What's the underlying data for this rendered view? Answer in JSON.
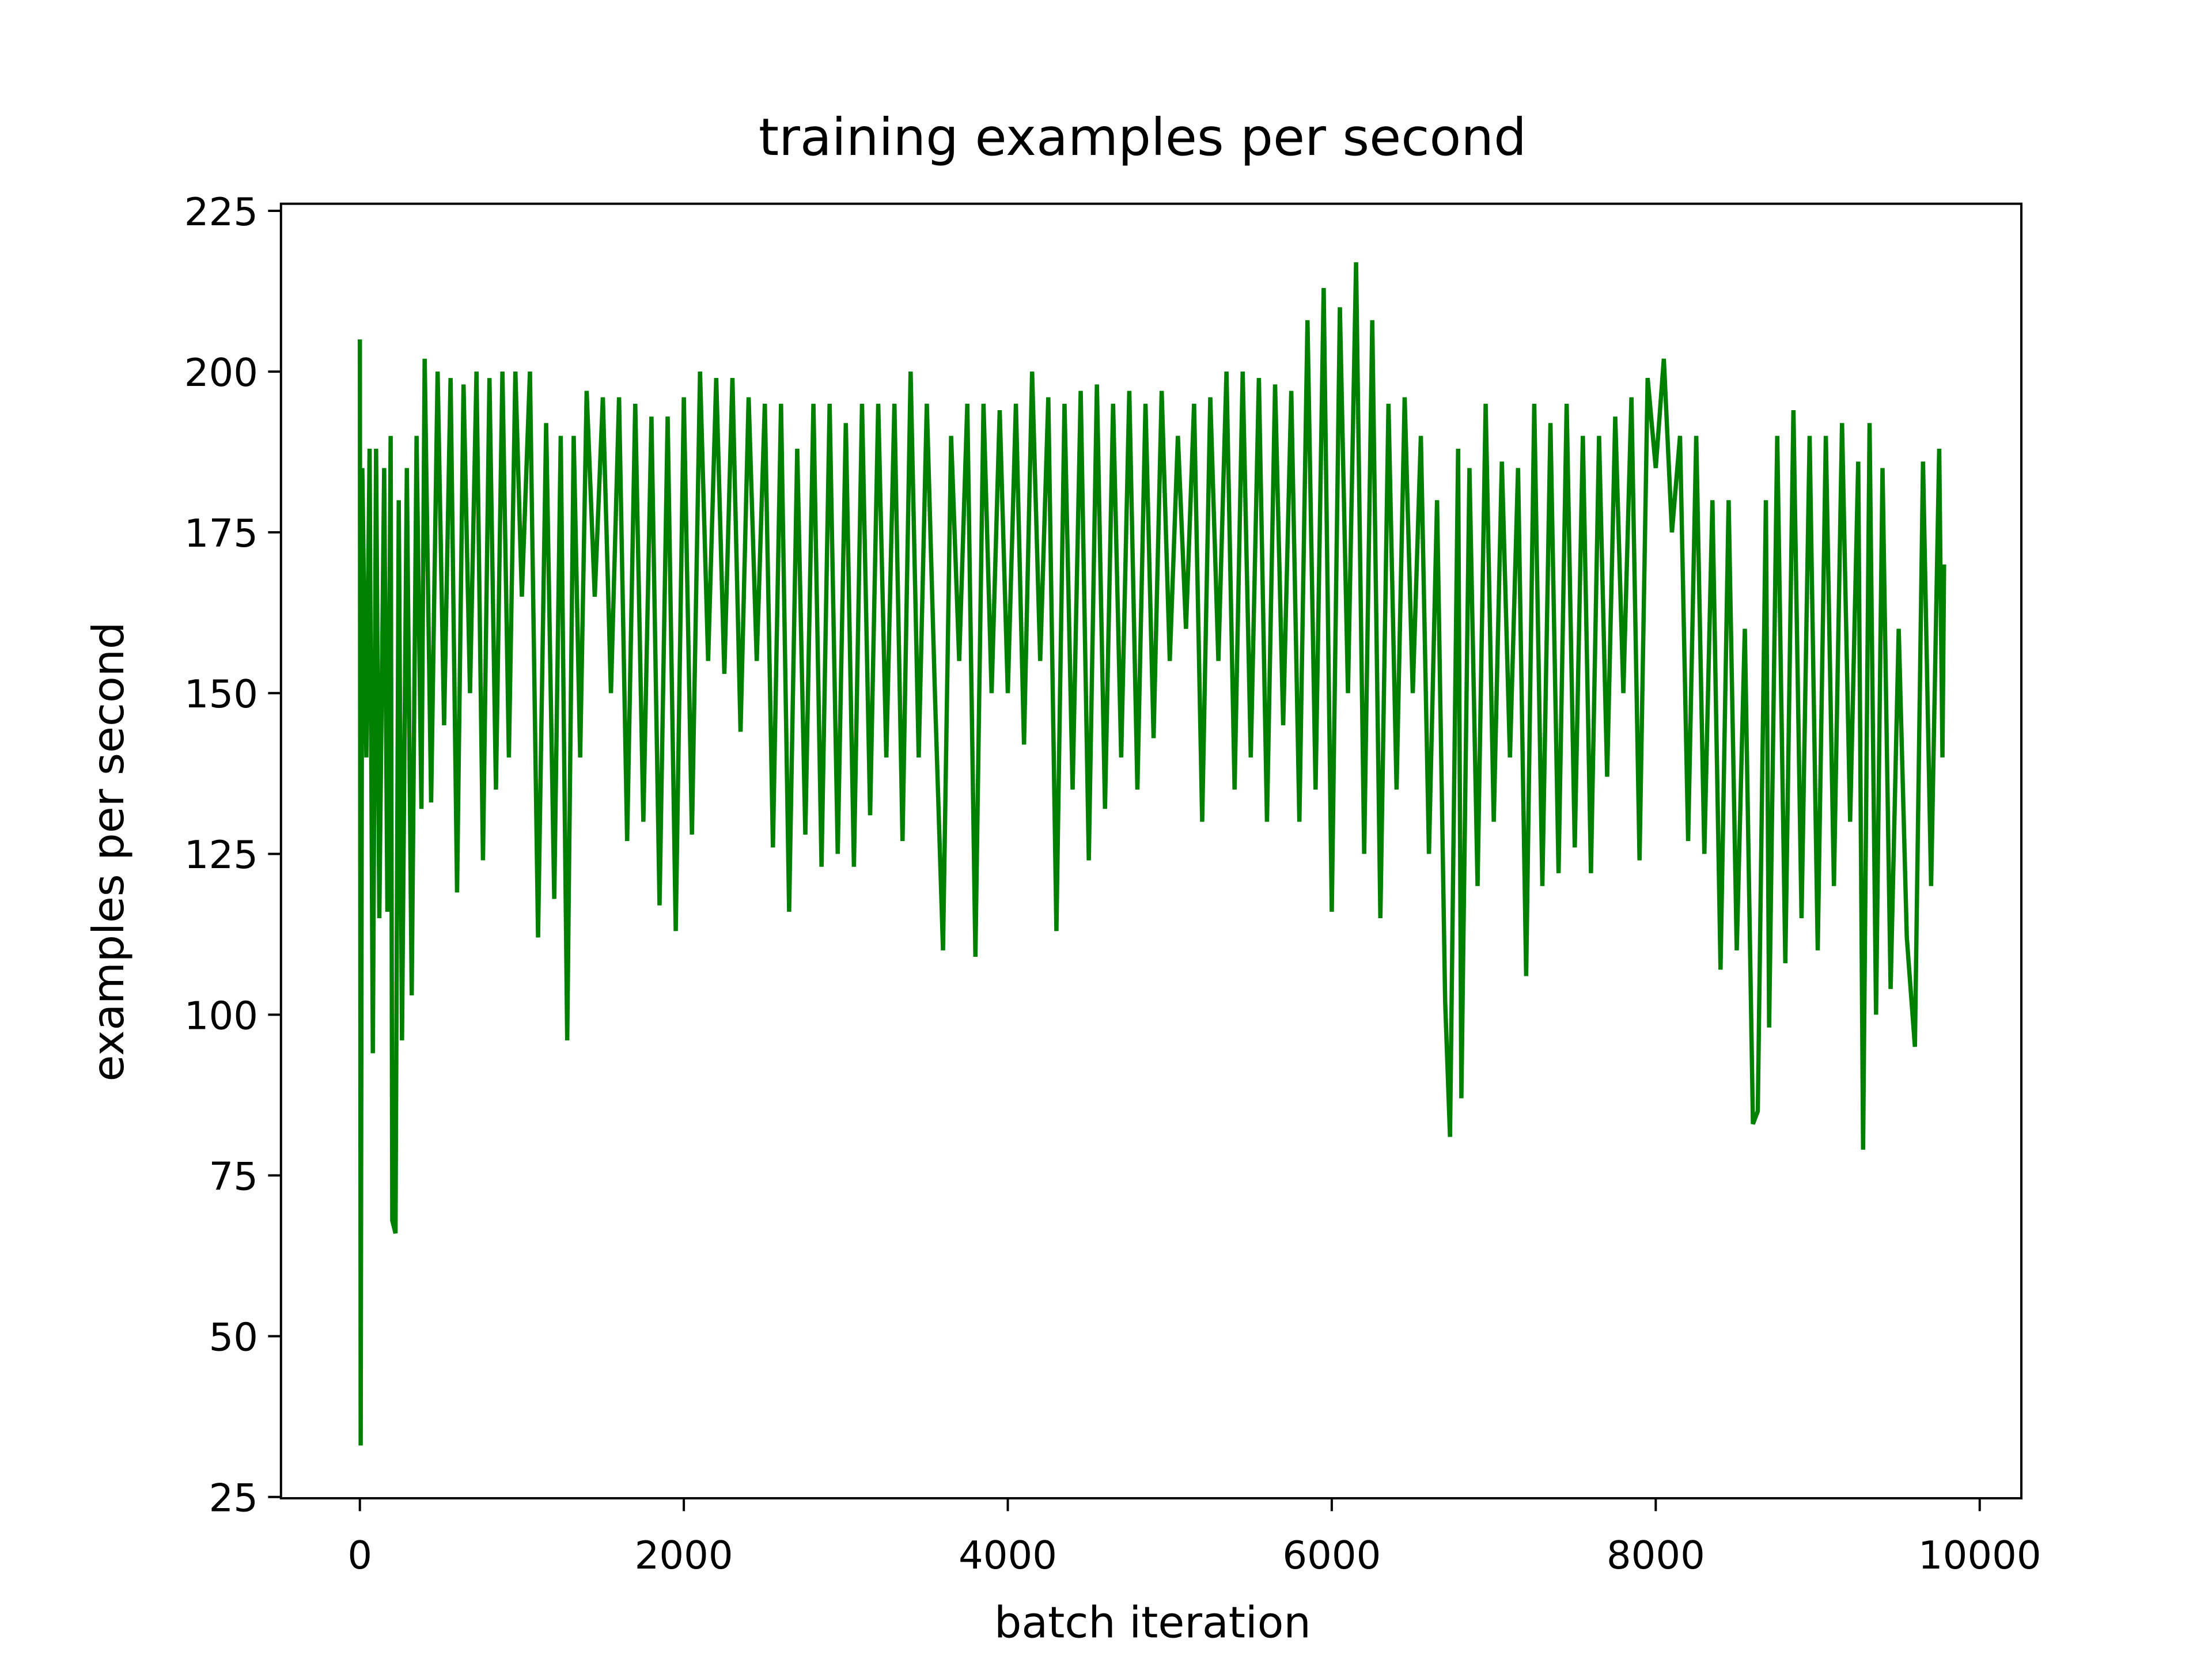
{
  "chart_data": {
    "type": "line",
    "title": "training examples per second",
    "x_label": "batch iteration",
    "y_label": "examples per second",
    "xlim": [
      -487,
      10257
    ],
    "ylim": [
      24.8,
      226.1
    ],
    "xticks": [
      0,
      2000,
      4000,
      6000,
      8000,
      10000
    ],
    "yticks": [
      25,
      50,
      75,
      100,
      125,
      150,
      175,
      200,
      225
    ],
    "grid": false,
    "x": [
      0,
      5,
      15,
      40,
      60,
      80,
      100,
      120,
      150,
      170,
      190,
      200,
      220,
      240,
      260,
      290,
      320,
      350,
      380,
      400,
      440,
      480,
      520,
      560,
      600,
      640,
      680,
      720,
      760,
      800,
      840,
      880,
      920,
      960,
      1000,
      1050,
      1100,
      1150,
      1200,
      1240,
      1280,
      1320,
      1360,
      1400,
      1450,
      1500,
      1550,
      1600,
      1650,
      1700,
      1750,
      1800,
      1850,
      1900,
      1950,
      2000,
      2050,
      2100,
      2150,
      2200,
      2250,
      2300,
      2350,
      2400,
      2450,
      2500,
      2550,
      2600,
      2650,
      2700,
      2750,
      2800,
      2850,
      2900,
      2950,
      3000,
      3050,
      3100,
      3150,
      3200,
      3250,
      3300,
      3350,
      3400,
      3450,
      3500,
      3550,
      3600,
      3650,
      3700,
      3750,
      3800,
      3850,
      3900,
      3950,
      4000,
      4050,
      4100,
      4150,
      4200,
      4250,
      4300,
      4350,
      4400,
      4450,
      4500,
      4550,
      4600,
      4650,
      4700,
      4750,
      4800,
      4850,
      4900,
      4950,
      5000,
      5050,
      5100,
      5150,
      5200,
      5250,
      5300,
      5350,
      5400,
      5450,
      5500,
      5550,
      5600,
      5650,
      5700,
      5750,
      5800,
      5850,
      5900,
      5950,
      6000,
      6050,
      6100,
      6150,
      6200,
      6250,
      6300,
      6350,
      6400,
      6450,
      6500,
      6550,
      6600,
      6650,
      6700,
      6730,
      6780,
      6800,
      6850,
      6900,
      6950,
      7000,
      7050,
      7100,
      7150,
      7200,
      7250,
      7300,
      7350,
      7400,
      7450,
      7500,
      7550,
      7600,
      7650,
      7700,
      7750,
      7800,
      7850,
      7900,
      7950,
      8000,
      8050,
      8100,
      8150,
      8200,
      8250,
      8300,
      8350,
      8400,
      8450,
      8500,
      8550,
      8600,
      8630,
      8680,
      8700,
      8750,
      8800,
      8850,
      8900,
      8950,
      9000,
      9050,
      9100,
      9150,
      9200,
      9250,
      9280,
      9320,
      9360,
      9400,
      9450,
      9500,
      9550,
      9600,
      9650,
      9700,
      9750,
      9770,
      9780
    ],
    "series": [
      {
        "name": "examples per second",
        "color": "#008000",
        "values": [
          205,
          33,
          185,
          140,
          188,
          94,
          188,
          115,
          185,
          116,
          190,
          68,
          66,
          180,
          96,
          185,
          103,
          190,
          132,
          202,
          133,
          200,
          145,
          199,
          119,
          198,
          150,
          200,
          124,
          199,
          135,
          200,
          140,
          200,
          165,
          200,
          112,
          192,
          118,
          190,
          96,
          190,
          140,
          197,
          165,
          196,
          150,
          196,
          127,
          195,
          130,
          193,
          117,
          193,
          113,
          196,
          128,
          200,
          155,
          199,
          153,
          199,
          144,
          196,
          155,
          195,
          126,
          195,
          116,
          188,
          128,
          195,
          123,
          195,
          125,
          192,
          123,
          195,
          131,
          195,
          140,
          195,
          127,
          200,
          140,
          195,
          150,
          110,
          190,
          155,
          195,
          109,
          195,
          150,
          194,
          150,
          195,
          142,
          200,
          155,
          196,
          113,
          195,
          135,
          197,
          124,
          198,
          132,
          195,
          140,
          197,
          135,
          195,
          143,
          197,
          155,
          190,
          160,
          195,
          130,
          196,
          155,
          200,
          135,
          200,
          140,
          199,
          130,
          198,
          145,
          197,
          130,
          208,
          135,
          213,
          116,
          210,
          150,
          217,
          125,
          208,
          115,
          195,
          135,
          196,
          150,
          190,
          125,
          180,
          102,
          81,
          188,
          87,
          185,
          120,
          195,
          130,
          186,
          140,
          185,
          106,
          195,
          120,
          192,
          122,
          195,
          126,
          190,
          122,
          190,
          137,
          193,
          150,
          196,
          124,
          199,
          185,
          202,
          175,
          190,
          127,
          190,
          125,
          180,
          107,
          180,
          110,
          160,
          83,
          85,
          180,
          98,
          190,
          108,
          194,
          115,
          190,
          110,
          190,
          120,
          192,
          130,
          186,
          79,
          192,
          100,
          185,
          104,
          160,
          112,
          95,
          186,
          120,
          188,
          140,
          170
        ]
      }
    ]
  }
}
